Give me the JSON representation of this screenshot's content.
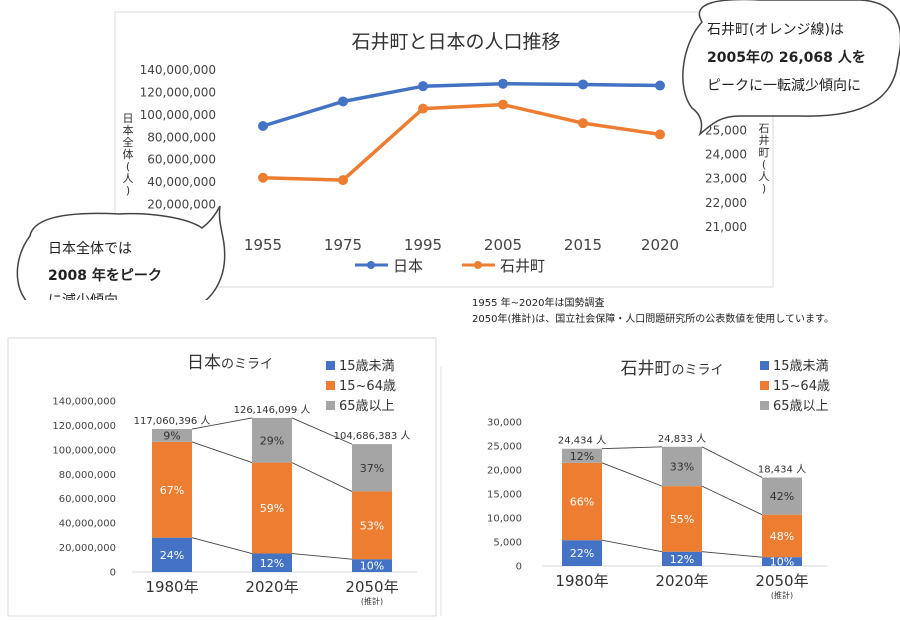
{
  "colors": {
    "japan": "#4472c4",
    "ishii": "#ed7d31",
    "gray": "#a5a5a5",
    "axis": "#d9d9d9",
    "ink": "#222222"
  },
  "chart_data": [
    {
      "id": "trend",
      "type": "line",
      "title": "石井町と日本の人口推移",
      "x": [
        "1955",
        "1975",
        "1995",
        "2005",
        "2015",
        "2020"
      ],
      "left_ticks": [
        "140,000,000",
        "120,000,000",
        "100,000,000",
        "80,000,000",
        "60,000,000",
        "40,000,000",
        "20,000,000",
        "0"
      ],
      "left_tick_values": [
        140000000,
        120000000,
        100000000,
        80000000,
        60000000,
        40000000,
        20000000,
        0
      ],
      "ylabel_left": "日本全体(人)",
      "ylim_left": [
        0,
        140000000
      ],
      "right_ticks": [
        "25,000",
        "24,000",
        "23,000",
        "22,000",
        "21,000"
      ],
      "right_tick_values": [
        25000,
        24000,
        23000,
        22000,
        21000
      ],
      "ylabel_right": "石井町(人)",
      "ylim_right": [
        21000,
        27500
      ],
      "series": [
        {
          "name": "日本",
          "axis": "left",
          "values": [
            90076594,
            111939643,
            125570246,
            127767994,
            127094745,
            126146099
          ]
        },
        {
          "name": "石井町",
          "axis": "right",
          "values": [
            23040,
            22940,
            25900,
            26068,
            25300,
            24833
          ]
        }
      ]
    },
    {
      "id": "japan_future",
      "type": "bar",
      "title": "日本のミライ",
      "title_main": "日本",
      "title_suffix": "のミライ",
      "categories": [
        "1980年",
        "2020年",
        "2050年"
      ],
      "sublabels": [
        "",
        "",
        "(推計)"
      ],
      "totals": [
        117060396,
        126146099,
        104686383
      ],
      "total_labels": [
        "117,060,396 人",
        "126,146,099 人",
        "104,686,383 人"
      ],
      "series": [
        {
          "name": "15歳未満",
          "values": [
            24,
            12,
            10
          ],
          "labels": [
            "24%",
            "12%",
            "10%"
          ]
        },
        {
          "name": "15~64歳",
          "values": [
            67,
            59,
            53
          ],
          "labels": [
            "67%",
            "59%",
            "53%"
          ]
        },
        {
          "name": "65歳以上",
          "values": [
            9,
            29,
            37
          ],
          "labels": [
            "9%",
            "29%",
            "37%"
          ]
        }
      ],
      "y_ticks": [
        "140,000,000",
        "120,000,000",
        "100,000,000",
        "80,000,000",
        "60,000,000",
        "40,000,000",
        "20,000,000",
        "0"
      ],
      "y_tick_values": [
        140000000,
        120000000,
        100000000,
        80000000,
        60000000,
        40000000,
        20000000,
        0
      ],
      "ylim": [
        0,
        140000000
      ]
    },
    {
      "id": "ishii_future",
      "type": "bar",
      "title": "石井町のミライ",
      "title_main": "石井町",
      "title_suffix": "のミライ",
      "categories": [
        "1980年",
        "2020年",
        "2050年"
      ],
      "sublabels": [
        "",
        "",
        "(推計)"
      ],
      "totals": [
        24434,
        24833,
        18434
      ],
      "total_labels": [
        "24,434 人",
        "24,833 人",
        "18,434 人"
      ],
      "series": [
        {
          "name": "15歳未満",
          "values": [
            22,
            12,
            10
          ],
          "labels": [
            "22%",
            "12%",
            "10%"
          ]
        },
        {
          "name": "15~64歳",
          "values": [
            66,
            55,
            48
          ],
          "labels": [
            "66%",
            "55%",
            "48%"
          ]
        },
        {
          "name": "65歳以上",
          "values": [
            12,
            33,
            42
          ],
          "labels": [
            "12%",
            "33%",
            "42%"
          ]
        }
      ],
      "y_ticks": [
        "30,000",
        "25,000",
        "20,000",
        "15,000",
        "10,000",
        "5,000",
        "0"
      ],
      "y_tick_values": [
        30000,
        25000,
        20000,
        15000,
        10000,
        5000,
        0
      ],
      "ylim": [
        0,
        30000
      ]
    }
  ],
  "bubbles": {
    "right": {
      "line1": "石井町(オレンジ線)は",
      "line2": "2005年の 26,068 人を",
      "line3": "ピークに一転減少傾向に"
    },
    "left": {
      "line1": "日本全体では",
      "line2": "2008 年をピーク",
      "line3": "に減少傾向"
    }
  },
  "notes": {
    "line1": "1955 年~2020年は国勢調査",
    "line2": "2050年(推計)は、国立社会保障・人口問題研究所の公表数値を使用しています。"
  }
}
